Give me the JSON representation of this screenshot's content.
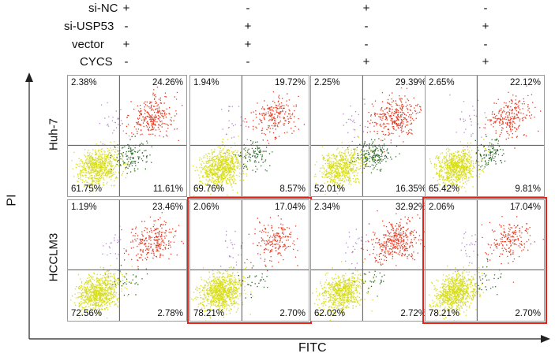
{
  "conditions": [
    {
      "label": "si-NC",
      "signs": [
        "+",
        "-",
        "+",
        "-"
      ]
    },
    {
      "label": "si-USP53",
      "signs": [
        "-",
        "+",
        "-",
        "+"
      ]
    },
    {
      "label": "vector",
      "signs": [
        "+",
        "+",
        "-",
        "-"
      ]
    },
    {
      "label": "CYCS",
      "signs": [
        "-",
        "-",
        "+",
        "+"
      ]
    }
  ],
  "axes": {
    "y_label": "PI",
    "x_label": "FITC"
  },
  "rows": [
    {
      "label": "Huh-7"
    },
    {
      "label": "HCCLM3"
    }
  ],
  "colors": {
    "live": "#d8de1c",
    "early": "#2e6b2a",
    "late": "#e33a22",
    "necrotic": "#b58acb",
    "highlight": "#e0241b"
  },
  "chart_data": {
    "type": "scatter",
    "xlabel": "FITC",
    "ylabel": "PI",
    "panels": [
      {
        "row": "Huh-7",
        "column": 1,
        "upper_left": "2.38%",
        "upper_right": "24.26%",
        "lower_left": "61.75%",
        "lower_right": "11.61%",
        "highlighted": false
      },
      {
        "row": "Huh-7",
        "column": 2,
        "upper_left": "1.94%",
        "upper_right": "19.72%",
        "lower_left": "69.76%",
        "lower_right": "8.57%",
        "highlighted": false
      },
      {
        "row": "Huh-7",
        "column": 3,
        "upper_left": "2.25%",
        "upper_right": "29.39%",
        "lower_left": "52.01%",
        "lower_right": "16.35%",
        "highlighted": false
      },
      {
        "row": "Huh-7",
        "column": 4,
        "upper_left": "2.65%",
        "upper_right": "22.12%",
        "lower_left": "65.42%",
        "lower_right": "9.81%",
        "highlighted": false
      },
      {
        "row": "HCCLM3",
        "column": 1,
        "upper_left": "1.19%",
        "upper_right": "23.46%",
        "lower_left": "72.56%",
        "lower_right": "2.78%",
        "highlighted": false
      },
      {
        "row": "HCCLM3",
        "column": 2,
        "upper_left": "2.06%",
        "upper_right": "17.04%",
        "lower_left": "78.21%",
        "lower_right": "2.70%",
        "highlighted": true
      },
      {
        "row": "HCCLM3",
        "column": 3,
        "upper_left": "2.34%",
        "upper_right": "32.92%",
        "lower_left": "62.02%",
        "lower_right": "2.72%",
        "highlighted": false
      },
      {
        "row": "HCCLM3",
        "column": 4,
        "upper_left": "2.06%",
        "upper_right": "17.04%",
        "lower_left": "78.21%",
        "lower_right": "2.70%",
        "highlighted": true
      }
    ]
  }
}
